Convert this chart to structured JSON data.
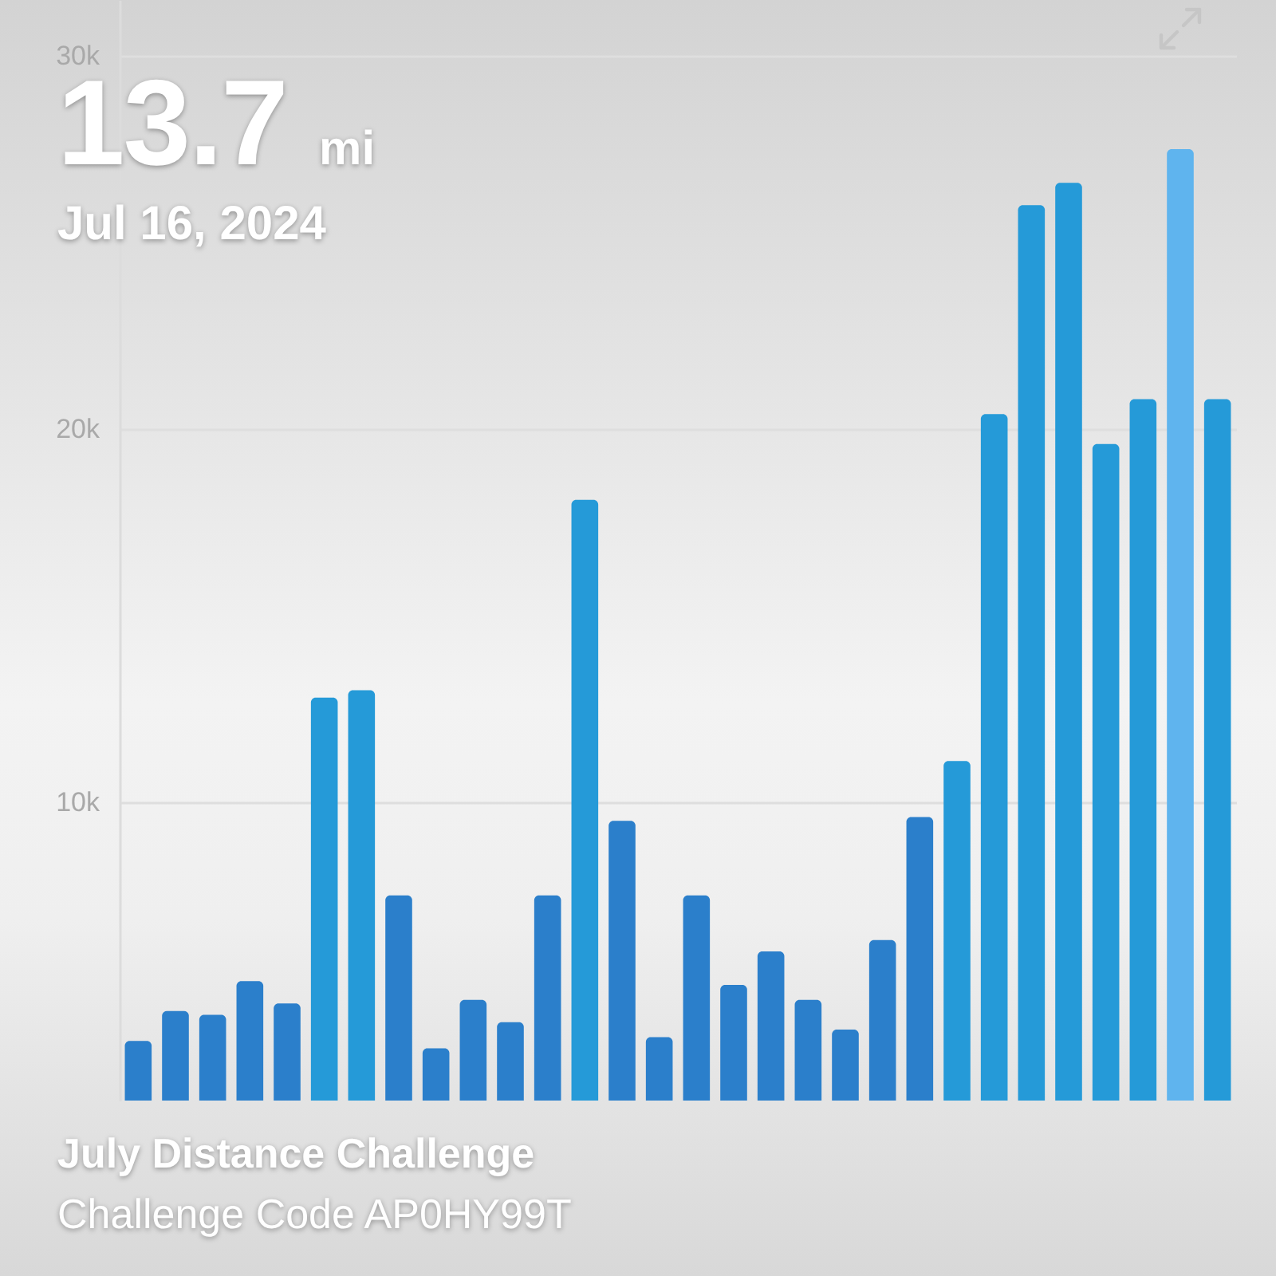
{
  "chart_data": {
    "type": "bar",
    "title": "13.7 mi",
    "subtitle": "Jul 16, 2024",
    "annotations": [
      "July Distance Challenge",
      "Challenge Code AP0HY99T"
    ],
    "categories": [
      null,
      null,
      null,
      null,
      null,
      null,
      null,
      null,
      null,
      null,
      null,
      null,
      null,
      null,
      null,
      null,
      null,
      null,
      null,
      null,
      null,
      null,
      null,
      null,
      null,
      null,
      null,
      null,
      null,
      null
    ],
    "values": [
      3600,
      4400,
      4300,
      5200,
      4600,
      12800,
      13000,
      7500,
      3400,
      4700,
      4100,
      7500,
      18100,
      9500,
      3700,
      7500,
      5100,
      6000,
      4700,
      3900,
      6300,
      9600,
      11100,
      20400,
      26000,
      26600,
      19600,
      20800,
      27500,
      20800
    ],
    "colors": [
      "#2b7fcb",
      "#2b7fcb",
      "#2b7fcb",
      "#2b7fcb",
      "#2b7fcb",
      "#259ad8",
      "#259ad8",
      "#2b7fcb",
      "#2b7fcb",
      "#2b7fcb",
      "#2b7fcb",
      "#2b7fcb",
      "#259ad8",
      "#2b7fcb",
      "#2b7fcb",
      "#2b7fcb",
      "#2b7fcb",
      "#2b7fcb",
      "#2b7fcb",
      "#2b7fcb",
      "#2b7fcb",
      "#2b7fcb",
      "#259ad8",
      "#259ad8",
      "#259ad8",
      "#259ad8",
      "#259ad8",
      "#259ad8",
      "#5fb4ee",
      "#259ad8"
    ],
    "ylim": [
      2000,
      31500
    ],
    "yticks": [
      {
        "value": 10000,
        "label": "10k"
      },
      {
        "value": 20000,
        "label": "20k"
      },
      {
        "value": 30000,
        "label": "30k"
      }
    ],
    "grid": "y",
    "tick_labels": "y"
  }
}
